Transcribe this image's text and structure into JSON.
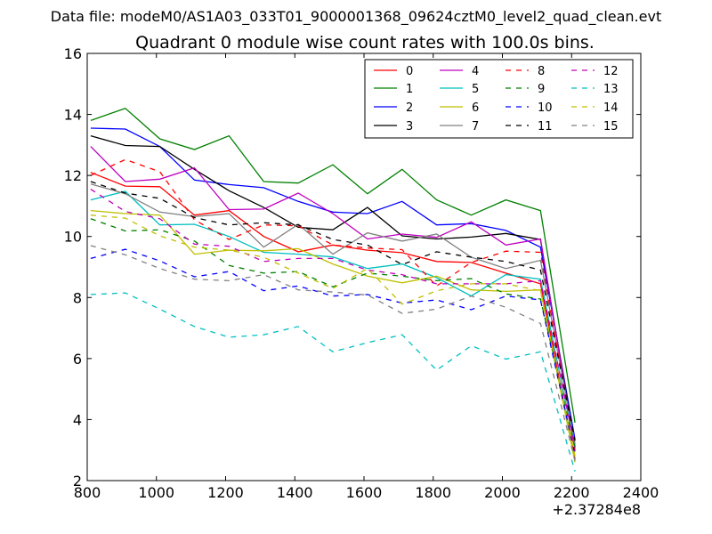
{
  "chart_data": {
    "type": "line",
    "suptitle": "Data file: modeM0/AS1A03_033T01_9000001368_09624cztM0_level2_quad_clean.evt",
    "title": "Quadrant 0 module wise count rates with 100.0s bins.",
    "xlabel": "",
    "ylabel": "",
    "x_offset_label": "+2.37284e8",
    "xlim": [
      800,
      2400
    ],
    "ylim": [
      2,
      16
    ],
    "xticks": [
      800,
      1000,
      1200,
      1400,
      1600,
      1800,
      2000,
      2200,
      2400
    ],
    "yticks": [
      2,
      4,
      6,
      8,
      10,
      12,
      14,
      16
    ],
    "grid": false,
    "legend_location": "top-right",
    "x": [
      810,
      910,
      1010,
      1110,
      1210,
      1310,
      1410,
      1510,
      1610,
      1710,
      1810,
      1910,
      2010,
      2110,
      2210
    ],
    "series": [
      {
        "name": "0",
        "color": "#ff0000",
        "dash": "solid",
        "values": [
          12.1,
          11.65,
          11.63,
          10.7,
          10.85,
          10.0,
          9.5,
          9.72,
          9.55,
          9.47,
          9.18,
          9.15,
          8.8,
          8.45,
          2.7
        ]
      },
      {
        "name": "1",
        "color": "#008000",
        "dash": "solid",
        "values": [
          13.8,
          14.2,
          13.2,
          12.85,
          13.3,
          11.8,
          11.75,
          12.35,
          11.4,
          12.2,
          11.2,
          10.7,
          11.2,
          10.85,
          3.9
        ]
      },
      {
        "name": "2",
        "color": "#0000ff",
        "dash": "solid",
        "values": [
          13.55,
          13.52,
          12.95,
          11.85,
          11.7,
          11.6,
          11.15,
          10.8,
          10.75,
          11.15,
          10.38,
          10.42,
          10.2,
          9.65,
          3.35
        ]
      },
      {
        "name": "3",
        "color": "#000000",
        "dash": "solid",
        "values": [
          13.3,
          12.98,
          12.95,
          12.2,
          11.5,
          10.95,
          10.3,
          10.22,
          10.95,
          10.02,
          9.92,
          9.98,
          10.1,
          9.9,
          3.1
        ]
      },
      {
        "name": "4",
        "color": "#bf00bf",
        "dash": "solid",
        "values": [
          12.95,
          11.8,
          11.88,
          12.25,
          10.88,
          10.9,
          11.42,
          10.75,
          9.92,
          10.08,
          9.97,
          10.48,
          9.72,
          9.92,
          3.0
        ]
      },
      {
        "name": "5",
        "color": "#00bfbf",
        "dash": "solid",
        "values": [
          11.2,
          11.48,
          10.38,
          10.4,
          10.0,
          9.48,
          9.42,
          9.33,
          8.95,
          9.1,
          8.65,
          8.05,
          8.75,
          8.6,
          3.05
        ]
      },
      {
        "name": "6",
        "color": "#bfbf00",
        "dash": "solid",
        "values": [
          10.85,
          10.75,
          10.7,
          9.42,
          9.55,
          9.53,
          9.6,
          9.1,
          8.7,
          8.48,
          8.7,
          8.25,
          8.2,
          8.25,
          2.6
        ]
      },
      {
        "name": "7",
        "color": "#808080",
        "dash": "solid",
        "values": [
          11.72,
          11.4,
          10.8,
          10.65,
          10.75,
          9.65,
          10.4,
          9.42,
          10.12,
          9.85,
          10.08,
          9.32,
          8.95,
          9.22,
          3.2
        ]
      },
      {
        "name": "8",
        "color": "#ff0000",
        "dash": "dashed",
        "values": [
          12.0,
          12.52,
          12.12,
          10.55,
          9.9,
          10.38,
          10.35,
          9.72,
          9.62,
          9.57,
          8.38,
          9.15,
          9.52,
          9.48,
          2.95
        ]
      },
      {
        "name": "9",
        "color": "#008000",
        "dash": "dashed",
        "values": [
          10.58,
          10.18,
          10.22,
          9.85,
          9.05,
          8.8,
          8.85,
          8.35,
          8.8,
          8.7,
          8.55,
          8.62,
          8.12,
          7.95,
          3.05
        ]
      },
      {
        "name": "10",
        "color": "#0000ff",
        "dash": "dashed",
        "values": [
          9.28,
          9.58,
          9.2,
          8.68,
          8.85,
          8.22,
          8.38,
          8.05,
          8.1,
          7.82,
          7.92,
          7.6,
          8.05,
          7.92,
          2.85
        ]
      },
      {
        "name": "11",
        "color": "#000000",
        "dash": "dashed",
        "values": [
          11.8,
          11.42,
          11.25,
          10.62,
          10.38,
          10.45,
          10.38,
          9.9,
          9.72,
          9.08,
          9.5,
          9.32,
          9.18,
          8.9,
          3.3
        ]
      },
      {
        "name": "12",
        "color": "#bf00bf",
        "dash": "dashed",
        "values": [
          11.55,
          10.82,
          10.58,
          9.75,
          9.68,
          9.18,
          9.28,
          9.28,
          8.9,
          8.75,
          8.45,
          8.45,
          8.45,
          8.55,
          3.1
        ]
      },
      {
        "name": "13",
        "color": "#00bfbf",
        "dash": "dashed",
        "values": [
          8.1,
          8.15,
          7.62,
          7.05,
          6.7,
          6.78,
          7.05,
          6.22,
          6.52,
          6.78,
          5.62,
          6.42,
          5.98,
          6.22,
          2.3
        ]
      },
      {
        "name": "14",
        "color": "#bfbf00",
        "dash": "dashed",
        "values": [
          10.7,
          10.6,
          10.02,
          9.65,
          9.55,
          9.32,
          8.8,
          8.3,
          8.95,
          7.78,
          8.22,
          8.45,
          8.45,
          8.22,
          2.8
        ]
      },
      {
        "name": "15",
        "color": "#808080",
        "dash": "dashed",
        "values": [
          9.7,
          9.4,
          8.95,
          8.6,
          8.55,
          8.75,
          8.25,
          8.18,
          8.08,
          7.48,
          7.62,
          8.05,
          7.68,
          7.15,
          2.65
        ]
      }
    ]
  }
}
